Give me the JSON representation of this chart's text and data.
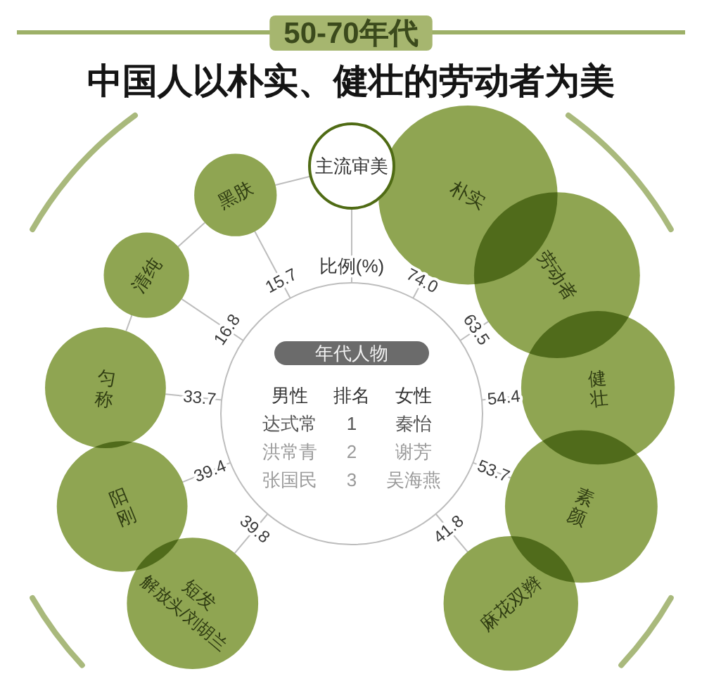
{
  "chart_data": {
    "type": "other",
    "title": "50-70年代",
    "subtitle": "中国人以朴实、健壮的劳动者为美",
    "xlabel": "主流审美",
    "ylabel": "比例(%)",
    "categories": [
      "朴实",
      "劳动者",
      "健壮",
      "素颜",
      "麻花双辫",
      "短发",
      "阳刚",
      "匀称",
      "清纯",
      "黑肤"
    ],
    "values": [
      74.0,
      63.5,
      54.4,
      53.7,
      41.8,
      39.8,
      39.4,
      33.7,
      16.8,
      15.7
    ],
    "value_labels": [
      "74.0",
      "63.5",
      "54.4",
      "53.7",
      "41.8",
      "39.8",
      "39.4",
      "33.7",
      "16.8",
      "15.7"
    ],
    "color": "#8fa552",
    "annotations": [
      {
        "text": "解放头/刘胡兰",
        "x": "短发"
      },
      "年代人物",
      "男性",
      "排名",
      "女性",
      "达式常",
      "1",
      "秦怡",
      "洪常青",
      "2",
      "谢芳",
      "张国民",
      "3",
      "吴海燕"
    ]
  }
}
